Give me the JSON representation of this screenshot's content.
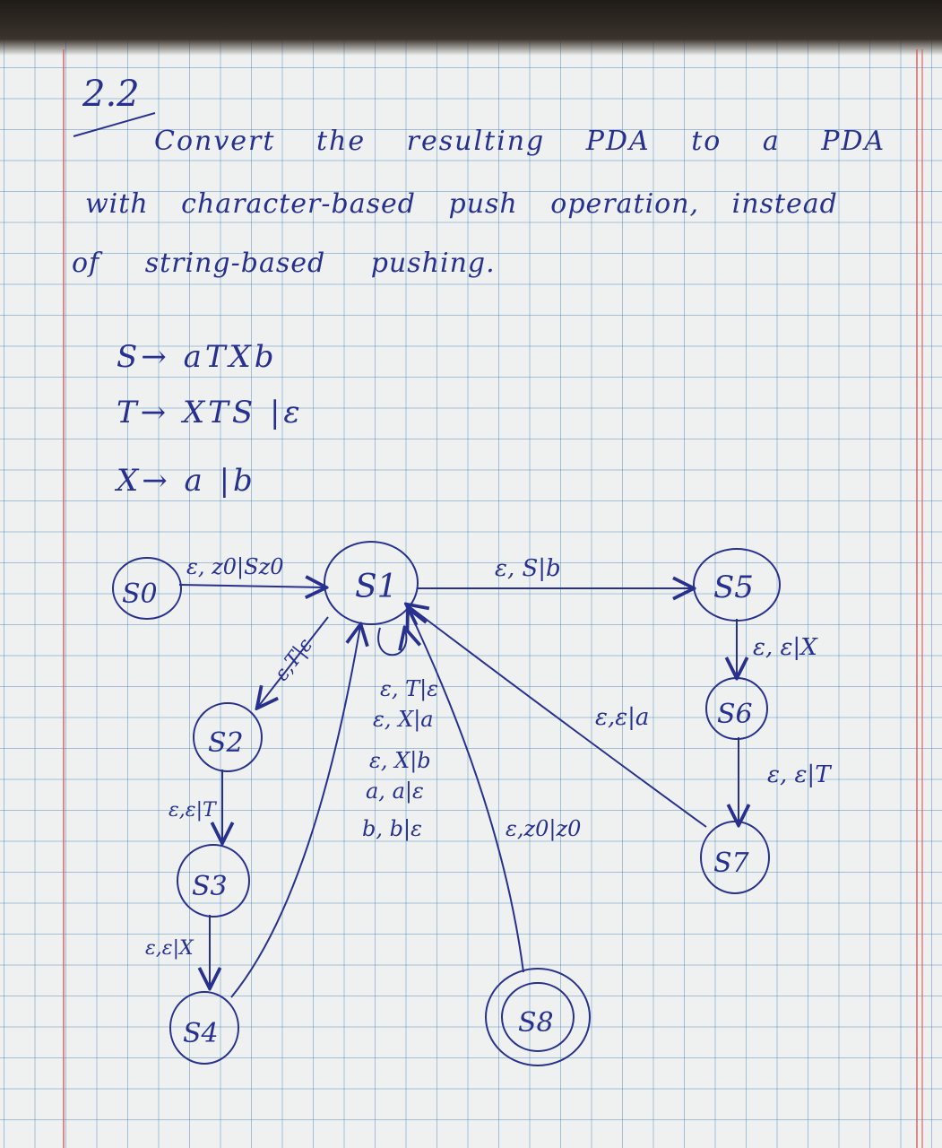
{
  "problem": {
    "number": "2.2",
    "line1": "Convert the resulting PDA to a PDA",
    "line2": "with character-based push operation, instead",
    "line3": "of string-based pushing."
  },
  "grammar": [
    "S→ aTXb",
    "T→ XTS |ε",
    "X→ a |b"
  ],
  "states": {
    "s0": "S0",
    "s1": "S1",
    "s2": "S2",
    "s3": "S3",
    "s4": "S4",
    "s5": "S5",
    "s6": "S6",
    "s7": "S7",
    "s8": "S8"
  },
  "transitions": {
    "s0_s1": "ε, z0|Sz0",
    "s1_s5": "ε, S|b",
    "s5_s6": "ε, ε|X",
    "s6_s7": "ε, ε|T",
    "s7_s1": "ε,ε|a",
    "s1_s2": "ε,T|ε",
    "s2_s3": "ε,ε|T",
    "s3_s4": "ε,ε|X",
    "s8_s1": "ε,z0|z0",
    "s1_loop": [
      "ε, T|ε",
      "ε, X|a",
      "ε, X|b",
      "a, a|ε",
      "b, b|ε"
    ]
  },
  "colors": {
    "ink": "#27308f",
    "paper": "#eef1ef",
    "grid": "#3c78b9",
    "margin": "#d75a5a"
  }
}
